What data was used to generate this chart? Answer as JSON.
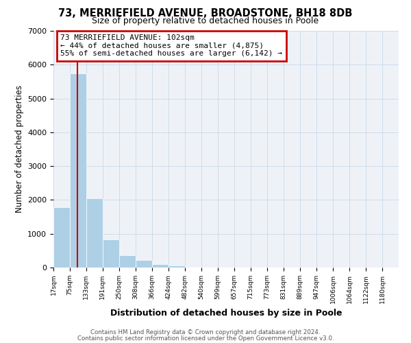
{
  "title": "73, MERRIEFIELD AVENUE, BROADSTONE, BH18 8DB",
  "subtitle": "Size of property relative to detached houses in Poole",
  "xlabel": "Distribution of detached houses by size in Poole",
  "ylabel": "Number of detached properties",
  "bar_left_edges": [
    17,
    75,
    133,
    191,
    250,
    308,
    366,
    424,
    482,
    540,
    599,
    657,
    715,
    773,
    831,
    889,
    947,
    1006,
    1064,
    1122
  ],
  "bar_heights": [
    1780,
    5750,
    2050,
    830,
    370,
    230,
    110,
    55,
    25,
    10,
    5,
    2,
    1,
    0,
    0,
    0,
    0,
    0,
    0,
    0
  ],
  "bin_width": 58,
  "bar_color": "#aed0e6",
  "property_line_x": 102,
  "property_line_color": "#cc0000",
  "annotation_text": "73 MERRIEFIELD AVENUE: 102sqm\n← 44% of detached houses are smaller (4,875)\n55% of semi-detached houses are larger (6,142) →",
  "annotation_box_color": "#cc0000",
  "annotation_text_color": "#000000",
  "ylim": [
    0,
    7000
  ],
  "yticks": [
    0,
    1000,
    2000,
    3000,
    4000,
    5000,
    6000,
    7000
  ],
  "tick_labels": [
    "17sqm",
    "75sqm",
    "133sqm",
    "191sqm",
    "250sqm",
    "308sqm",
    "366sqm",
    "424sqm",
    "482sqm",
    "540sqm",
    "599sqm",
    "657sqm",
    "715sqm",
    "773sqm",
    "831sqm",
    "889sqm",
    "947sqm",
    "1006sqm",
    "1064sqm",
    "1122sqm",
    "1180sqm"
  ],
  "tick_positions": [
    17,
    75,
    133,
    191,
    250,
    308,
    366,
    424,
    482,
    540,
    599,
    657,
    715,
    773,
    831,
    889,
    947,
    1006,
    1064,
    1122,
    1180
  ],
  "grid_color": "#c8d8e8",
  "background_color": "#eef2f7",
  "footer_line1": "Contains HM Land Registry data © Crown copyright and database right 2024.",
  "footer_line2": "Contains public sector information licensed under the Open Government Licence v3.0."
}
